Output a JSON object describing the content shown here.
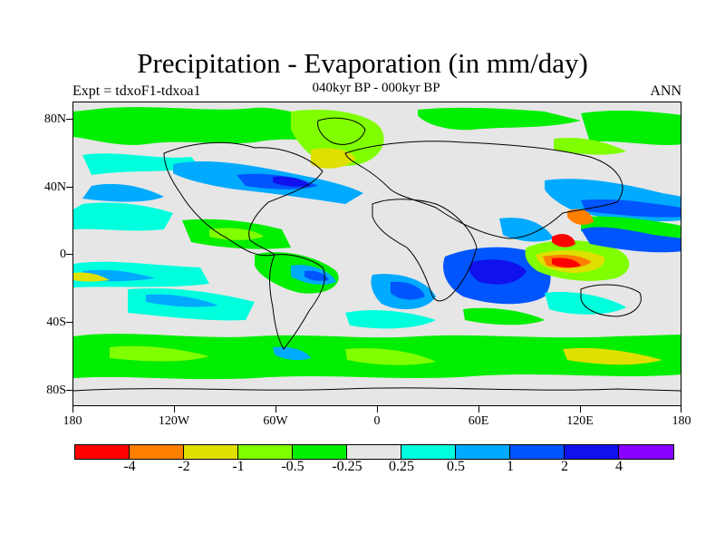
{
  "title": "Precipitation - Evaporation (in mm/day)",
  "subtitle": "040kyr BP - 000kyr BP",
  "left_label": "Expt = tdxoF1-tdxoa1",
  "right_label": "ANN",
  "lat_labels": [
    "80N",
    "40N",
    "0",
    "40S",
    "80S"
  ],
  "lon_labels": [
    "180",
    "120W",
    "60W",
    "0",
    "60E",
    "120E",
    "180"
  ],
  "colorbar": {
    "colors": [
      "#ff0000",
      "#ff7f00",
      "#e0e000",
      "#80ff00",
      "#00ee00",
      "#e6e6e6",
      "#00ffdd",
      "#00aaff",
      "#0055ff",
      "#1111ee",
      "#8800ff"
    ],
    "labels": [
      "-4",
      "-2",
      "-1",
      "-0.5",
      "-0.25",
      "0.25",
      "0.5",
      "1",
      "2",
      "4"
    ]
  }
}
